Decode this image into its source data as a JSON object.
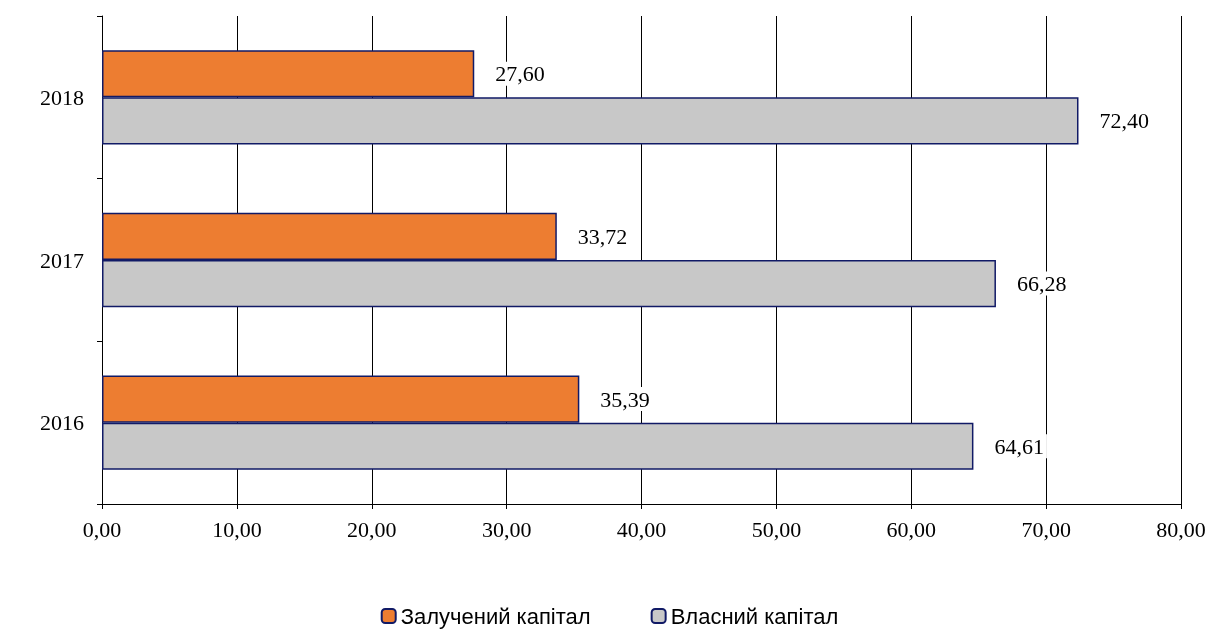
{
  "chart_data": {
    "type": "bar",
    "orientation": "horizontal",
    "categories": [
      "2018",
      "2017",
      "2016"
    ],
    "series": [
      {
        "name": "Залучений капітал",
        "color": "#ed7d31",
        "values": [
          27.6,
          33.72,
          35.39
        ],
        "value_labels": [
          "27,60",
          "33,72",
          "35,39"
        ]
      },
      {
        "name": "Власний капітал",
        "color": "#c8c8c8",
        "values": [
          72.4,
          66.28,
          64.61
        ],
        "value_labels": [
          "72,40",
          "66,28",
          "64,61"
        ]
      }
    ],
    "xlim": [
      0,
      80
    ],
    "xticks": [
      {
        "value": 0,
        "label": "0,00"
      },
      {
        "value": 10,
        "label": "10,00"
      },
      {
        "value": 20,
        "label": "20,00"
      },
      {
        "value": 30,
        "label": "30,00"
      },
      {
        "value": 40,
        "label": "40,00"
      },
      {
        "value": 50,
        "label": "50,00"
      },
      {
        "value": 60,
        "label": "60,00"
      },
      {
        "value": 70,
        "label": "70,00"
      },
      {
        "value": 80,
        "label": "80,00"
      }
    ],
    "grid": "x",
    "legend": "bottom"
  }
}
